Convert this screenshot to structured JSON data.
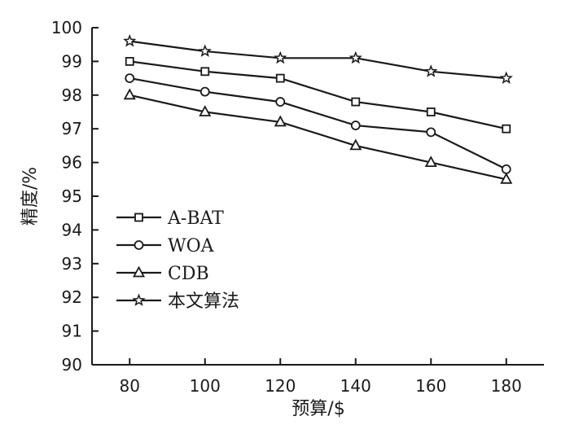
{
  "chart_data": {
    "type": "line",
    "xlabel": "预算/$",
    "ylabel": "精度/%",
    "x": [
      80,
      100,
      120,
      140,
      160,
      180
    ],
    "xticks": [
      80,
      100,
      120,
      140,
      160,
      180
    ],
    "xlim": [
      70,
      190
    ],
    "ylim": [
      90,
      100
    ],
    "yticks": [
      90,
      91,
      92,
      93,
      94,
      95,
      96,
      97,
      98,
      99,
      100
    ],
    "grid": false,
    "legend_position": "lower-left",
    "series": [
      {
        "name": "A-BAT",
        "marker": "square",
        "values": [
          99.0,
          98.7,
          98.5,
          97.8,
          97.5,
          97.0
        ]
      },
      {
        "name": "WOA",
        "marker": "circle",
        "values": [
          98.5,
          98.1,
          97.8,
          97.1,
          96.9,
          95.8
        ]
      },
      {
        "name": "CDB",
        "marker": "triangle",
        "values": [
          98.0,
          97.5,
          97.2,
          96.5,
          96.0,
          95.5
        ]
      },
      {
        "name": "本文算法",
        "marker": "star",
        "values": [
          99.6,
          99.3,
          99.1,
          99.1,
          98.7,
          98.5
        ]
      }
    ]
  }
}
